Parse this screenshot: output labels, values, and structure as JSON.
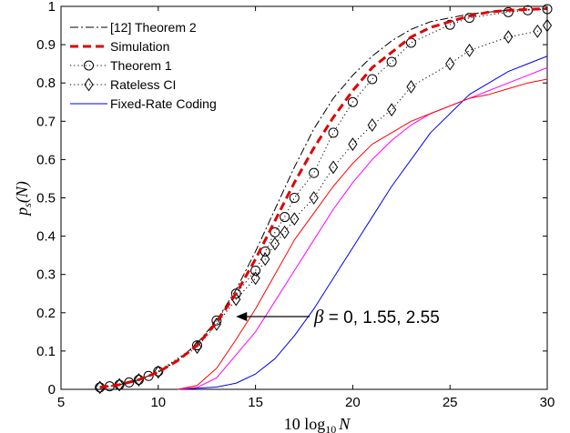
{
  "chart_data": {
    "type": "line",
    "xlabel": "10 log",
    "xlabel_sub": "10",
    "xlabel_var": "N",
    "ylabel": "p",
    "ylabel_sub": "s",
    "ylabel_arg": "(N)",
    "xlim": [
      5,
      30
    ],
    "ylim": [
      0,
      1
    ],
    "xticks": [
      5,
      10,
      15,
      20,
      25,
      30
    ],
    "yticks": [
      0,
      0.1,
      0.2,
      0.3,
      0.4,
      0.5,
      0.6,
      0.7,
      0.8,
      0.9,
      1
    ],
    "grid": false,
    "legend_position": "top-left",
    "annotation": {
      "symbol": "β",
      "text": " = 0, 1.55, 2.55",
      "arrow_to": [
        14,
        0.19
      ]
    },
    "series": [
      {
        "name": "[12] Theorem 2",
        "color": "#000000",
        "style": "dashdot",
        "marker": "none",
        "x": [
          7,
          8,
          9,
          10,
          11,
          12,
          13,
          14,
          15,
          16,
          17,
          18,
          19,
          20,
          21,
          22,
          23,
          24,
          25,
          26,
          27,
          28,
          29,
          30
        ],
        "y": [
          0.005,
          0.012,
          0.025,
          0.045,
          0.075,
          0.12,
          0.18,
          0.26,
          0.36,
          0.47,
          0.58,
          0.68,
          0.76,
          0.82,
          0.87,
          0.91,
          0.94,
          0.96,
          0.97,
          0.98,
          0.985,
          0.99,
          0.992,
          0.994
        ]
      },
      {
        "name": "Simulation",
        "color": "#e00000",
        "style": "dashed",
        "marker": "none",
        "x": [
          7,
          8,
          9,
          10,
          11,
          12,
          13,
          14,
          15,
          16,
          17,
          18,
          19,
          20,
          21,
          22,
          23,
          24,
          25,
          26,
          27,
          28,
          29,
          30
        ],
        "y": [
          0.005,
          0.012,
          0.025,
          0.045,
          0.075,
          0.115,
          0.175,
          0.25,
          0.34,
          0.44,
          0.54,
          0.63,
          0.71,
          0.78,
          0.84,
          0.88,
          0.92,
          0.945,
          0.96,
          0.975,
          0.985,
          0.99,
          0.992,
          0.994
        ]
      },
      {
        "name": "Theorem 1",
        "color": "#000000",
        "style": "dotted",
        "marker": "circle",
        "x": [
          7,
          7.5,
          8,
          8.5,
          9,
          9.5,
          10,
          12,
          13,
          14,
          15,
          15.5,
          16,
          16.5,
          17,
          18,
          19,
          20,
          21,
          22,
          23,
          25,
          26,
          28,
          29,
          30
        ],
        "y": [
          0.005,
          0.008,
          0.012,
          0.018,
          0.025,
          0.035,
          0.047,
          0.115,
          0.18,
          0.25,
          0.31,
          0.36,
          0.41,
          0.45,
          0.5,
          0.565,
          0.67,
          0.75,
          0.81,
          0.855,
          0.905,
          0.952,
          0.97,
          0.985,
          0.99,
          0.993
        ]
      },
      {
        "name": "Rateless CI",
        "color": "#000000",
        "style": "dotted",
        "marker": "diamond",
        "x": [
          7,
          8,
          9,
          10,
          12,
          13,
          14,
          15,
          15.5,
          16,
          16.5,
          17,
          18,
          19,
          20,
          21,
          22,
          23,
          25,
          26,
          28,
          29.5,
          30
        ],
        "y": [
          0.005,
          0.012,
          0.025,
          0.045,
          0.11,
          0.17,
          0.235,
          0.29,
          0.34,
          0.38,
          0.41,
          0.445,
          0.5,
          0.58,
          0.64,
          0.69,
          0.73,
          0.79,
          0.85,
          0.885,
          0.92,
          0.935,
          0.95
        ]
      },
      {
        "name": "Fixed-Rate Coding",
        "color": "#0000ee",
        "style": "solid",
        "marker": "none",
        "x": [
          11,
          13,
          14,
          15,
          16,
          17,
          18,
          19,
          20,
          21,
          22,
          23,
          24,
          25,
          26,
          27,
          28,
          29,
          30
        ],
        "y": [
          0,
          0.006,
          0.016,
          0.04,
          0.08,
          0.14,
          0.21,
          0.29,
          0.37,
          0.45,
          0.53,
          0.6,
          0.67,
          0.72,
          0.77,
          0.8,
          0.83,
          0.85,
          0.87
        ]
      },
      {
        "color": "#ff00ff",
        "style": "solid",
        "marker": "none",
        "x": [
          11,
          12,
          13,
          14,
          15,
          16,
          17,
          18,
          19,
          20,
          21,
          22,
          23,
          24,
          25,
          26,
          27,
          28,
          29,
          30
        ],
        "y": [
          0,
          0.005,
          0.03,
          0.09,
          0.15,
          0.23,
          0.31,
          0.39,
          0.47,
          0.54,
          0.6,
          0.65,
          0.69,
          0.72,
          0.74,
          0.76,
          0.78,
          0.8,
          0.82,
          0.84
        ]
      },
      {
        "color": "#ff0000",
        "style": "solid",
        "marker": "none",
        "x": [
          11,
          12,
          13,
          14,
          15,
          16,
          17,
          18,
          19,
          20,
          21,
          22,
          23,
          24,
          25,
          26,
          27,
          28,
          29,
          30
        ],
        "y": [
          0,
          0.01,
          0.055,
          0.13,
          0.21,
          0.3,
          0.39,
          0.46,
          0.53,
          0.59,
          0.64,
          0.67,
          0.7,
          0.72,
          0.74,
          0.76,
          0.77,
          0.785,
          0.8,
          0.81
        ]
      }
    ]
  }
}
